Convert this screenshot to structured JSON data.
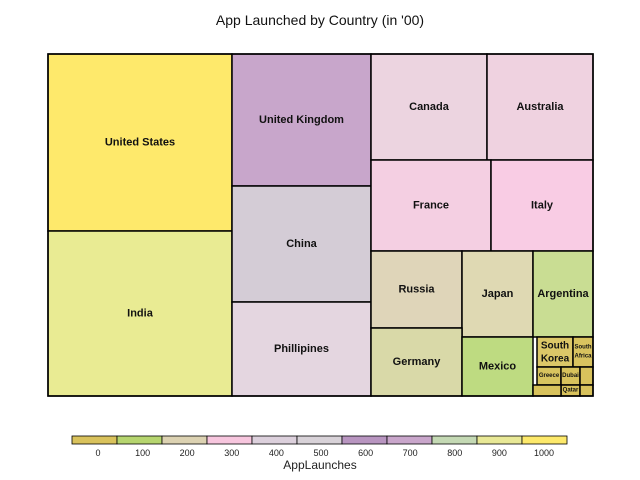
{
  "chart_data": {
    "type": "treemap",
    "title": "App Launched by Country (in '00)",
    "color_legend": {
      "label": "AppLaunches",
      "ticks": [
        "0",
        "100",
        "200",
        "300",
        "400",
        "500",
        "600",
        "700",
        "800",
        "900",
        "1000"
      ],
      "colors": [
        "#d9c25c",
        "#b6d56f",
        "#dcd2b2",
        "#f7c6de",
        "#dcd0dc",
        "#d8d2d8",
        "#b895c0",
        "#c9a6cb",
        "#c4d9b4",
        "#e8e896",
        "#fde96b"
      ]
    },
    "cells": [
      {
        "label": "United States",
        "color": "#fee96b"
      },
      {
        "label": "India",
        "color": "#e9eb93"
      },
      {
        "label": "United Kingdom",
        "color": "#c8a6cb"
      },
      {
        "label": "China",
        "color": "#d4ccd6"
      },
      {
        "label": "Phillipines",
        "color": "#e4d6e0"
      },
      {
        "label": "Canada",
        "color": "#ecd4e0"
      },
      {
        "label": "Australia",
        "color": "#efd2e0"
      },
      {
        "label": "France",
        "color": "#f4cfe2"
      },
      {
        "label": "Italy",
        "color": "#f9cce4"
      },
      {
        "label": "Russia",
        "color": "#dfd5b9"
      },
      {
        "label": "Japan",
        "color": "#dfd9b3"
      },
      {
        "label": "Argentina",
        "color": "#c9dd93"
      },
      {
        "label": "Germany",
        "color": "#d9d9a8"
      },
      {
        "label": "Mexico",
        "color": "#bedb81"
      },
      {
        "label": "South Korea",
        "color": "#dcc768"
      },
      {
        "label": "South Africa",
        "color": "#d9c35f"
      },
      {
        "label": "Greece",
        "color": "#d8c45f"
      },
      {
        "label": "Dubai",
        "color": "#d8c25c"
      },
      {
        "label": "Qatar",
        "color": "#d8c25c"
      },
      {
        "label": "",
        "color": "#d8c25c"
      },
      {
        "label": "",
        "color": "#d8c25c"
      },
      {
        "label": "",
        "color": "#d8c25c"
      }
    ]
  }
}
